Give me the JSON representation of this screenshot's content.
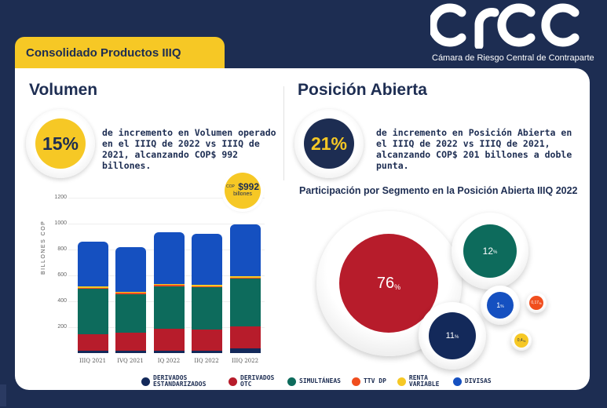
{
  "header": {
    "brand": "crcc",
    "subtitle": "Cámara de Riesgo Central de Contraparte",
    "tab_title": "Consolidado Productos IIIQ"
  },
  "volumen": {
    "heading": "Volumen",
    "percent": "15%",
    "description": "de incremento en Volumen operado en el IIIQ de 2022 vs IIIQ de 2021, alcanzando COP$ 992 billones.",
    "badge_prefix": "COP",
    "badge_value": "$992",
    "badge_unit": "billones"
  },
  "posicion": {
    "heading": "Posición Abierta",
    "percent": "21%",
    "description": "de incremento en Posición Abierta en el IIIQ de 2022 vs IIIQ de 2021, alcanzando COP$ 201 billones a doble punta.",
    "pie_title": "Participación por Segmento en la Posición Abierta IIIQ 2022"
  },
  "bubbles": [
    {
      "value": "76",
      "unit": "%",
      "color": "#b71c2b"
    },
    {
      "value": "12",
      "unit": "%",
      "color": "#0d6b5c"
    },
    {
      "value": "11",
      "unit": "%",
      "color": "#13295a"
    },
    {
      "value": "1",
      "unit": "%",
      "color": "#1550c0"
    },
    {
      "value": "0,17",
      "unit": "%",
      "color": "#f04e1e"
    },
    {
      "value": "0,4",
      "unit": "%",
      "color": "#f6c825"
    }
  ],
  "legend": [
    {
      "label": "DERIVADOS ESTANDARIZADOS",
      "color": "#13295a"
    },
    {
      "label": "DERIVADOS OTC",
      "color": "#b71c2b"
    },
    {
      "label": "SIMULTÁNEAS",
      "color": "#0d6b5c"
    },
    {
      "label": "TTV DP",
      "color": "#f04e1e"
    },
    {
      "label": "RENTA VARIABLE",
      "color": "#f6c825"
    },
    {
      "label": "DIVISAS",
      "color": "#1550c0"
    }
  ],
  "chart_data": {
    "type": "bar",
    "stacked": true,
    "ylabel": "BILLONES COP",
    "ylim": [
      0,
      1200
    ],
    "yticks": [
      "1200",
      "1000",
      "800",
      "600",
      "400",
      "200"
    ],
    "categories": [
      "IIIQ 2021",
      "IVQ 2021",
      "IQ 2022",
      "IIQ 2022",
      "IIIQ 2022"
    ],
    "series": [
      {
        "name": "DERIVADOS ESTANDARIZADOS",
        "color": "#13295a",
        "values": [
          18,
          18,
          20,
          20,
          35
        ]
      },
      {
        "name": "DERIVADOS OTC",
        "color": "#b71c2b",
        "values": [
          130,
          140,
          170,
          160,
          170
        ]
      },
      {
        "name": "SIMULTÁNEAS",
        "color": "#0d6b5c",
        "values": [
          355,
          305,
          335,
          335,
          375
        ]
      },
      {
        "name": "TTV DP",
        "color": "#f04e1e",
        "values": [
          2,
          2,
          2,
          2,
          5
        ]
      },
      {
        "name": "RENTA VARIABLE",
        "color": "#f6c825",
        "values": [
          8,
          8,
          8,
          8,
          8
        ]
      },
      {
        "name": "DIVISAS",
        "color": "#1550c0",
        "values": [
          347,
          347,
          397,
          397,
          399
        ]
      }
    ]
  }
}
